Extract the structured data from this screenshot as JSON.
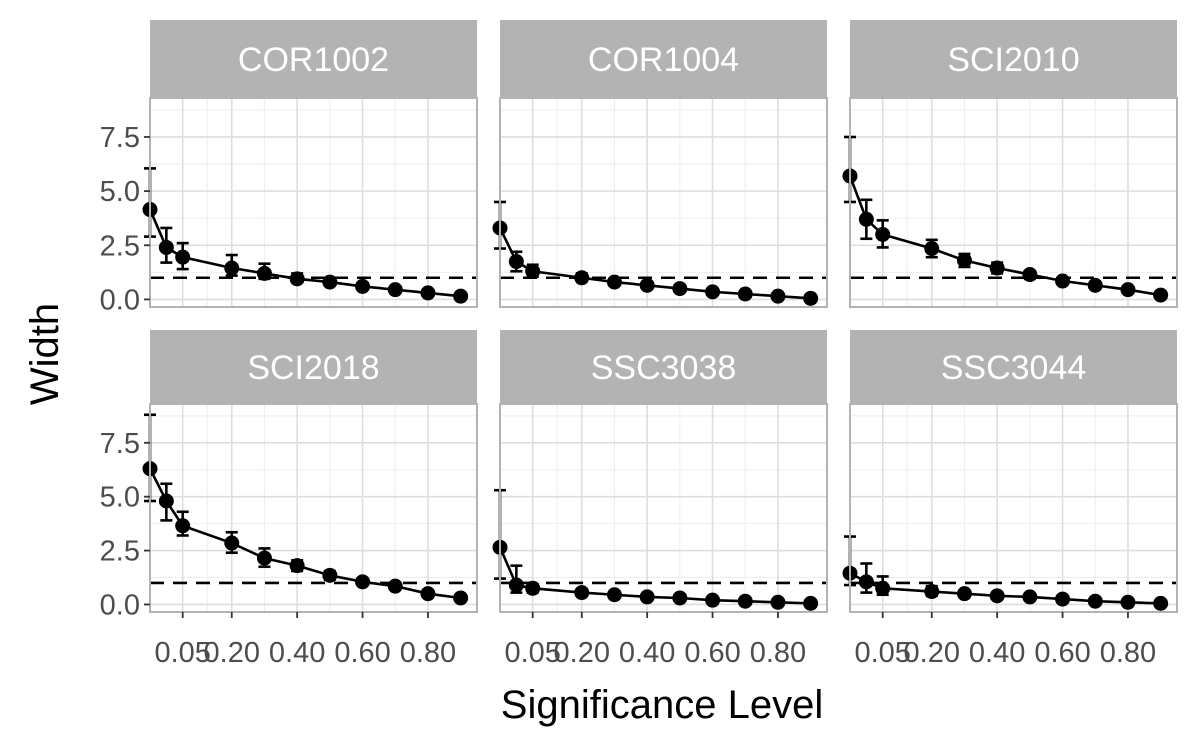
{
  "chart_data": {
    "type": "line",
    "facet_layout": "2x3 grid",
    "xlabel": "Significance Level",
    "ylabel": "Width",
    "x_ticks": [
      0.05,
      0.2,
      0.4,
      0.6,
      0.8
    ],
    "x_tick_labels": [
      "0.05",
      "0.20",
      "0.40",
      "0.60",
      "0.80"
    ],
    "xlim": [
      -0.05,
      0.95
    ],
    "y_ticks": [
      0,
      2.5,
      5,
      7.5
    ],
    "y_tick_labels": [
      "0.0",
      "2.5",
      "5.0",
      "7.5"
    ],
    "ylim": [
      -0.35,
      9.3
    ],
    "reference_line": 1.0,
    "grid": true,
    "x": [
      -0.05,
      0.0,
      0.05,
      0.2,
      0.3,
      0.4,
      0.5,
      0.6,
      0.7,
      0.8,
      0.9
    ],
    "panels": [
      {
        "name": "COR1002",
        "values": [
          4.15,
          2.4,
          1.95,
          1.45,
          1.2,
          0.95,
          0.8,
          0.6,
          0.45,
          0.3,
          0.15
        ],
        "lower": [
          2.9,
          1.7,
          1.4,
          1.1,
          0.95,
          0.8,
          0.65,
          0.5,
          0.4,
          0.25,
          0.1
        ],
        "upper": [
          6.05,
          3.3,
          2.6,
          2.05,
          1.65,
          1.2,
          0.95,
          0.7,
          0.55,
          0.35,
          0.2
        ]
      },
      {
        "name": "COR1004",
        "values": [
          3.3,
          1.75,
          1.3,
          1.0,
          0.8,
          0.65,
          0.5,
          0.35,
          0.25,
          0.15,
          0.05
        ],
        "lower": [
          2.35,
          1.3,
          1.05,
          0.85,
          0.7,
          0.55,
          0.45,
          0.3,
          0.2,
          0.1,
          0.0
        ],
        "upper": [
          4.5,
          2.2,
          1.6,
          1.2,
          0.9,
          0.75,
          0.6,
          0.4,
          0.3,
          0.2,
          0.1
        ]
      },
      {
        "name": "SCI2010",
        "values": [
          5.7,
          3.7,
          3.0,
          2.35,
          1.8,
          1.45,
          1.15,
          0.85,
          0.65,
          0.45,
          0.2
        ],
        "lower": [
          4.5,
          2.8,
          2.4,
          1.95,
          1.5,
          1.2,
          0.95,
          0.7,
          0.5,
          0.35,
          0.15
        ],
        "upper": [
          7.5,
          4.6,
          3.65,
          2.75,
          2.1,
          1.7,
          1.3,
          1.0,
          0.75,
          0.55,
          0.3
        ]
      },
      {
        "name": "SCI2018",
        "values": [
          6.3,
          4.8,
          3.65,
          2.85,
          2.15,
          1.8,
          1.35,
          1.05,
          0.85,
          0.5,
          0.3
        ],
        "lower": [
          4.8,
          3.9,
          3.2,
          2.4,
          1.75,
          1.55,
          1.15,
          0.9,
          0.7,
          0.4,
          0.2
        ],
        "upper": [
          8.8,
          5.6,
          4.3,
          3.35,
          2.6,
          2.05,
          1.55,
          1.2,
          1.0,
          0.6,
          0.4
        ]
      },
      {
        "name": "SSC3038",
        "values": [
          2.65,
          0.9,
          0.75,
          0.55,
          0.45,
          0.35,
          0.3,
          0.2,
          0.15,
          0.1,
          0.05
        ],
        "lower": [
          1.2,
          0.55,
          0.55,
          0.45,
          0.35,
          0.3,
          0.25,
          0.15,
          0.1,
          0.05,
          0.0
        ],
        "upper": [
          5.3,
          1.8,
          0.95,
          0.7,
          0.55,
          0.45,
          0.35,
          0.25,
          0.2,
          0.15,
          0.1
        ]
      },
      {
        "name": "SSC3044",
        "values": [
          1.45,
          1.05,
          0.75,
          0.6,
          0.5,
          0.4,
          0.35,
          0.25,
          0.15,
          0.1,
          0.05
        ],
        "lower": [
          0.9,
          0.55,
          0.45,
          0.4,
          0.35,
          0.3,
          0.25,
          0.15,
          0.1,
          0.05,
          0.0
        ],
        "upper": [
          3.15,
          1.9,
          1.3,
          0.85,
          0.65,
          0.5,
          0.45,
          0.35,
          0.25,
          0.15,
          0.1
        ]
      }
    ]
  }
}
